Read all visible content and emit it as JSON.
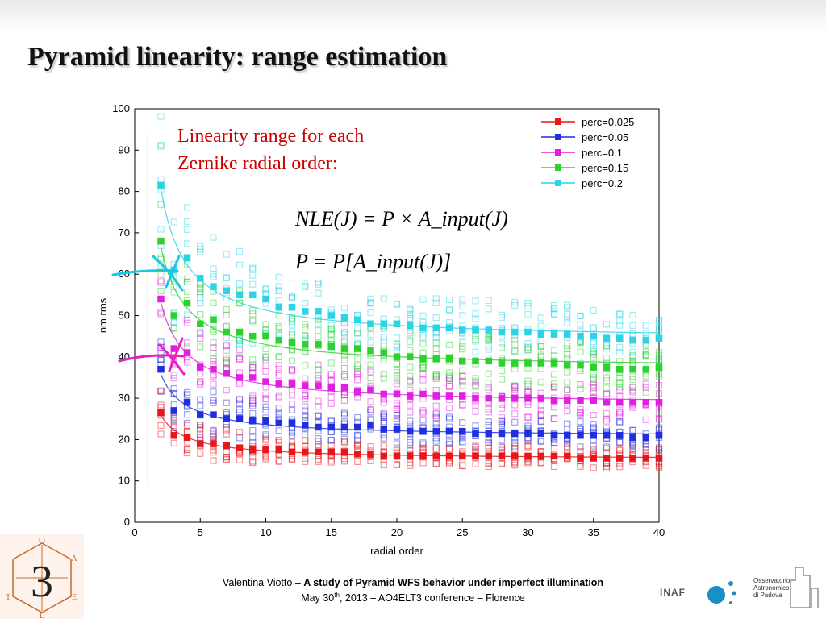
{
  "slide": {
    "title": "Pyramid linearity: range estimation"
  },
  "annotation": {
    "line1": "Linearity range for each",
    "line2": "Zernike radial order:",
    "color": "#cc0000"
  },
  "formulas": {
    "f1": "NLE(J) = P × A_input(J)",
    "f2": "P = P[A_input(J)]"
  },
  "chart_data": {
    "type": "scatter",
    "xlabel": "radial order",
    "ylabel": "nm rms",
    "xlim": [
      0,
      40
    ],
    "ylim": [
      0,
      100
    ],
    "xticks": [
      "0",
      "5",
      "10",
      "15",
      "20",
      "25",
      "30",
      "35",
      "40"
    ],
    "yticks": [
      "0",
      "10",
      "20",
      "30",
      "40",
      "50",
      "60",
      "70",
      "80",
      "90",
      "100"
    ],
    "legend_position": "top-right",
    "grid": false,
    "x": [
      2,
      3,
      4,
      5,
      6,
      7,
      8,
      9,
      10,
      11,
      12,
      13,
      14,
      15,
      16,
      17,
      18,
      19,
      20,
      21,
      22,
      23,
      24,
      25,
      26,
      27,
      28,
      29,
      30,
      31,
      32,
      33,
      34,
      35,
      36,
      37,
      38,
      39,
      40
    ],
    "series": [
      {
        "name": "perc=0.025",
        "color": "#e8161b",
        "values": [
          26.5,
          21,
          20.5,
          19,
          19,
          18.5,
          18,
          17.5,
          17.5,
          17.5,
          17,
          17,
          17,
          17,
          17,
          16.5,
          16.5,
          16,
          16,
          16,
          16,
          16,
          16,
          16,
          16,
          16,
          16,
          16,
          16,
          16,
          16,
          16,
          15.5,
          15.5,
          15.5,
          15.5,
          15.5,
          15.5,
          15.5
        ]
      },
      {
        "name": "perc=0.05",
        "color": "#1f2ee0",
        "values": [
          37,
          27,
          29,
          26,
          26,
          25,
          25,
          24.5,
          24.5,
          24,
          24,
          23.5,
          23,
          23,
          23,
          23,
          23.5,
          22.5,
          22.5,
          22,
          22,
          22,
          22,
          22,
          21.5,
          21.5,
          21.5,
          21.5,
          21.5,
          21.5,
          21,
          21,
          21,
          21,
          21,
          21,
          20.5,
          20.5,
          21
        ]
      },
      {
        "name": "perc=0.1",
        "color": "#e020e0",
        "values": [
          54,
          42,
          41,
          37.5,
          37,
          36,
          35,
          35,
          34,
          33.5,
          33.5,
          33,
          33,
          32.5,
          32.5,
          31.5,
          32,
          31,
          31,
          30.5,
          31,
          30.5,
          30.5,
          30.5,
          30,
          30,
          30,
          30,
          30,
          30,
          29.5,
          29.5,
          29.5,
          29.5,
          29,
          29,
          29,
          29,
          29
        ]
      },
      {
        "name": "perc=0.15",
        "color": "#2ed02e",
        "values": [
          68,
          50,
          53,
          48,
          49,
          46,
          46,
          45,
          45,
          44,
          43.5,
          43,
          43,
          42.5,
          42,
          42,
          41.5,
          41,
          40,
          40,
          39.5,
          39.5,
          39.5,
          39,
          39,
          39,
          38.5,
          38.5,
          38.5,
          38.5,
          38.5,
          38,
          38,
          37.5,
          37.5,
          37,
          37,
          37,
          37.5
        ]
      },
      {
        "name": "perc=0.2",
        "color": "#2ad4e6",
        "values": [
          81.5,
          61,
          64,
          59,
          57,
          56,
          55,
          55,
          54,
          52,
          52,
          51,
          51,
          50,
          49.5,
          49,
          48,
          48,
          48,
          47.5,
          47,
          47,
          47,
          46.5,
          46.5,
          46.5,
          46,
          46,
          46,
          45.5,
          45.5,
          45.5,
          45,
          45,
          44.5,
          44.5,
          44,
          44,
          44.5
        ]
      }
    ]
  },
  "footer": {
    "author": "Valentina Viotto",
    "dash": " – ",
    "talk": "A study of Pyramid WFS behavior under imperfect illumination",
    "date_pre": "May 30",
    "date_sup": "th",
    "date_post": ", 2013 – AO4ELT3 conference – Florence"
  },
  "logos": {
    "inaf": "INAF",
    "obs_line1": "Osservatorio",
    "obs_line2": "Astronomico",
    "obs_line3": "di Padova",
    "ao4elt_numeral": "3",
    "ao4elt_letters": [
      "O",
      "A",
      "E",
      "T",
      "L"
    ]
  }
}
